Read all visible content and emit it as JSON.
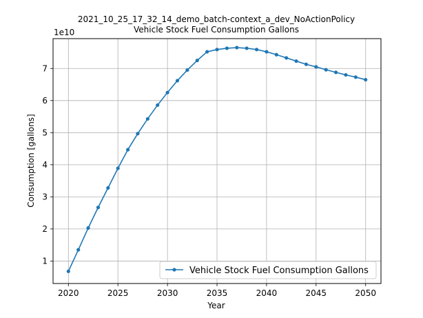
{
  "chart_data": {
    "type": "line",
    "title_line1": "2021_10_25_17_32_14_demo_batch-context_a_dev_NoActionPolicy",
    "title_line2": "Vehicle Stock Fuel Consumption Gallons",
    "xlabel": "Year",
    "ylabel": "Consumption [gallons]",
    "y_offset_label": "1e10",
    "xlim": [
      2018.45,
      2051.55
    ],
    "ylim": [
      0.3,
      7.93
    ],
    "xticks": [
      2020,
      2025,
      2030,
      2035,
      2040,
      2045,
      2050
    ],
    "yticks": [
      1,
      2,
      3,
      4,
      5,
      6,
      7
    ],
    "grid": true,
    "legend_position": "lower-right",
    "series": [
      {
        "name": "Vehicle Stock Fuel Consumption Gallons",
        "color": "#1f77b4",
        "x": [
          2020,
          2021,
          2022,
          2023,
          2024,
          2025,
          2026,
          2027,
          2028,
          2029,
          2030,
          2031,
          2032,
          2033,
          2034,
          2035,
          2036,
          2037,
          2038,
          2039,
          2040,
          2041,
          2042,
          2043,
          2044,
          2045,
          2046,
          2047,
          2048,
          2049,
          2050
        ],
        "y": [
          0.68,
          1.35,
          2.03,
          2.67,
          3.28,
          3.89,
          4.47,
          4.97,
          5.43,
          5.86,
          6.25,
          6.62,
          6.95,
          7.25,
          7.52,
          7.59,
          7.63,
          7.65,
          7.63,
          7.59,
          7.52,
          7.43,
          7.33,
          7.23,
          7.13,
          7.05,
          6.96,
          6.88,
          6.8,
          6.73,
          6.65
        ]
      }
    ]
  }
}
